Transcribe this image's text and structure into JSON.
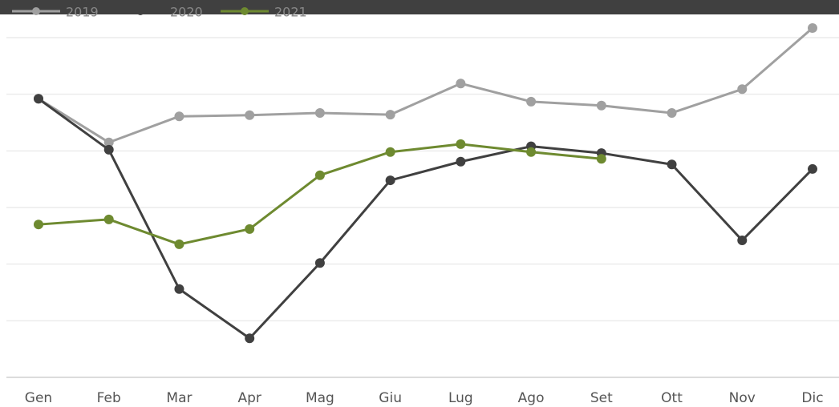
{
  "chart_data": {
    "type": "line",
    "categories": [
      "Gen",
      "Feb",
      "Mar",
      "Apr",
      "Mag",
      "Giu",
      "Lug",
      "Ago",
      "Set",
      "Ott",
      "Nov",
      "Dic"
    ],
    "series": [
      {
        "name": "2019",
        "color": "#a0a0a0",
        "values": [
          4.92,
          4.15,
          4.61,
          4.63,
          4.67,
          4.64,
          5.19,
          4.87,
          4.8,
          4.67,
          5.09,
          6.17
        ]
      },
      {
        "name": "2020",
        "color": "#404040",
        "values": [
          4.92,
          4.02,
          1.56,
          0.69,
          2.02,
          3.48,
          3.81,
          4.08,
          3.96,
          3.76,
          2.42,
          3.68
        ]
      },
      {
        "name": "2021",
        "color": "#6e8a30",
        "values": [
          2.7,
          2.79,
          2.35,
          2.62,
          3.57,
          3.98,
          4.12,
          3.98,
          3.86,
          null,
          null,
          null
        ]
      }
    ],
    "ylim": [
      0,
      6.5
    ],
    "yticks": [
      0,
      1,
      2,
      3,
      4,
      5,
      6
    ],
    "grid": true,
    "legend": "top-left"
  }
}
